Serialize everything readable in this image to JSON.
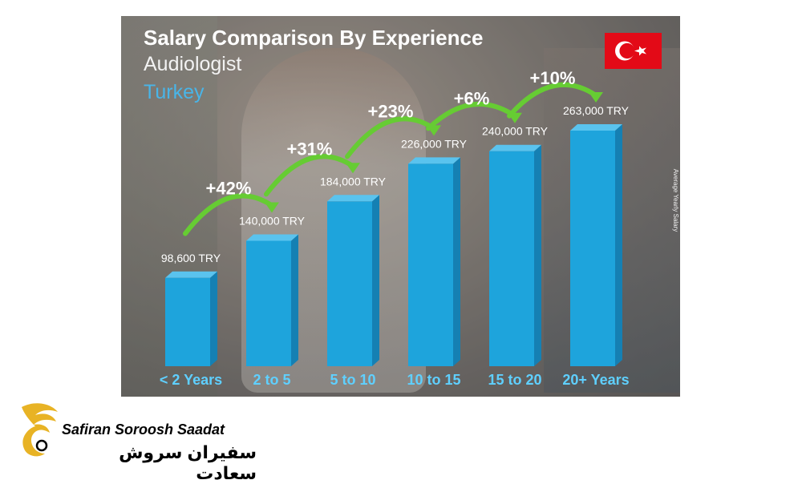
{
  "chart_data": {
    "type": "bar",
    "title": "Salary Comparison By Experience",
    "subtitle": "Audiologist",
    "country": "Turkey",
    "ylabel": "Average Yearly Salary",
    "currency": "TRY",
    "categories": [
      "< 2 Years",
      "2 to 5",
      "5 to 10",
      "10 to 15",
      "15 to 20",
      "20+ Years"
    ],
    "values": [
      98600,
      140000,
      184000,
      226000,
      240000,
      263000
    ],
    "value_labels": [
      "98,600 TRY",
      "140,000 TRY",
      "184,000 TRY",
      "226,000 TRY",
      "240,000 TRY",
      "263,000 TRY"
    ],
    "changes": [
      "+42%",
      "+31%",
      "+23%",
      "+6%",
      "+10%"
    ],
    "ylim": [
      0,
      263000
    ],
    "grid": false,
    "colors": {
      "bar": "#1ea4dc",
      "bar_side": "#1580b3",
      "bar_top": "#5ac3ee",
      "arrow": "#66cc33",
      "accent": "#49b5e8"
    }
  },
  "logo": {
    "name_en": "Safiran Soroosh Saadat",
    "name_fa": "سفیران سروش سعادت"
  }
}
